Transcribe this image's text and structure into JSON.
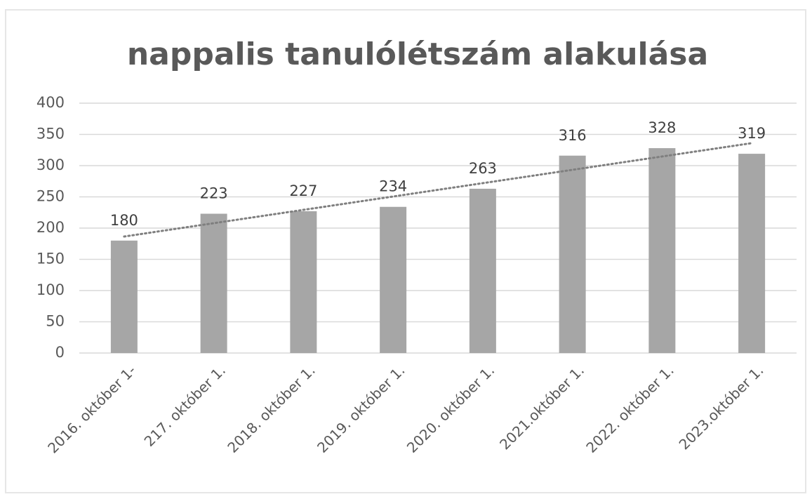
{
  "chart_data": {
    "type": "bar",
    "title": "nappalis tanulólétszám alakulása",
    "categories": [
      "2016. október 1-",
      "217. október 1.",
      "2018. október 1.",
      "2019. október 1.",
      "2020. október 1.",
      "2021.október 1.",
      "2022. október 1.",
      "2023.október 1."
    ],
    "values": [
      180,
      223,
      227,
      234,
      263,
      316,
      328,
      319
    ],
    "color": "#a6a6a6",
    "ylim": [
      0,
      400
    ],
    "yticks": [
      0,
      50,
      100,
      150,
      200,
      250,
      300,
      350,
      400
    ],
    "grid": true,
    "trendline": "linear"
  }
}
